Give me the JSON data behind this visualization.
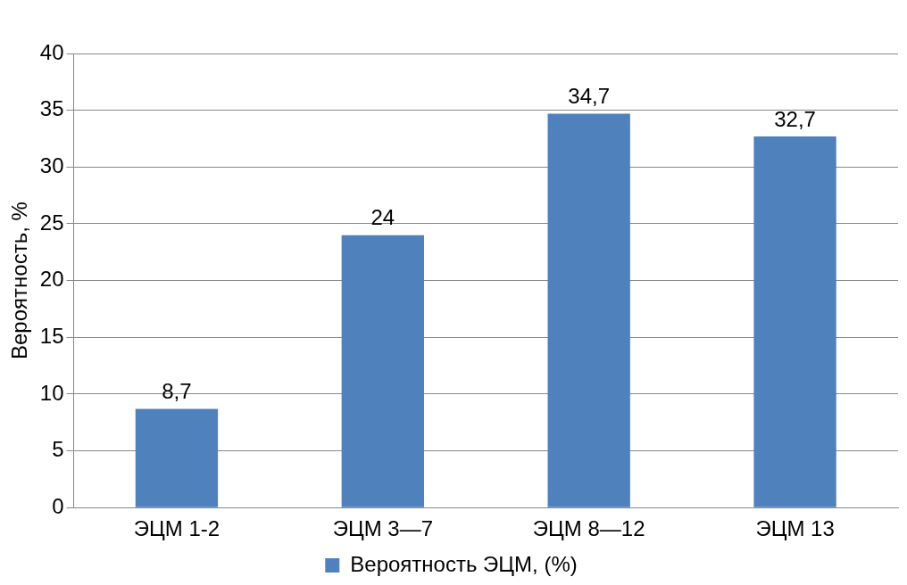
{
  "chart_data": {
    "type": "bar",
    "ylabel": "Вероятность, %",
    "categories": [
      "ЭЦМ 1-2",
      "ЭЦМ 3—7",
      "ЭЦМ 8—12",
      "ЭЦМ 13"
    ],
    "series": [
      {
        "name": "Вероятность ЭЦМ, (%)",
        "color": "#4f81bd",
        "values": [
          8.7,
          24,
          34.7,
          32.7
        ],
        "value_labels": [
          "8,7",
          "24",
          "34,7",
          "32,7"
        ]
      }
    ],
    "ylim": [
      0,
      40
    ],
    "yticks": [
      0,
      5,
      10,
      15,
      20,
      25,
      30,
      35,
      40
    ],
    "grid": "y",
    "legend": "bottom"
  }
}
